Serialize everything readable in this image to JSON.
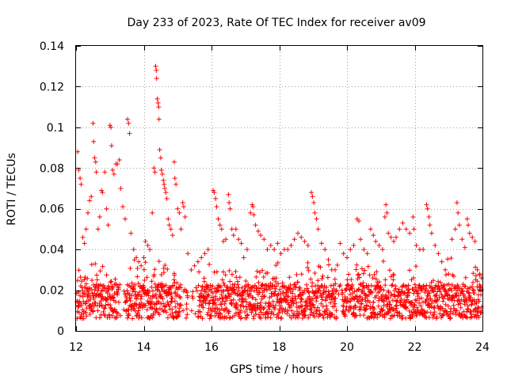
{
  "chart_data": {
    "type": "scatter",
    "title": "Day 233 of 2023, Rate Of TEC Index for receiver av09",
    "xlabel": "GPS time / hours",
    "ylabel": "ROTI / TECUs",
    "xlim": [
      12,
      24
    ],
    "ylim": [
      0,
      0.14
    ],
    "x_ticks": [
      12,
      14,
      16,
      18,
      20,
      22,
      24
    ],
    "x_tick_labels": [
      "12",
      "14",
      "16",
      "18",
      "20",
      "22",
      "24"
    ],
    "y_ticks": [
      0,
      0.02,
      0.04,
      0.06,
      0.08,
      0.1,
      0.12,
      0.14
    ],
    "y_tick_labels": [
      "0",
      "0.02",
      "0.04",
      "0.06",
      "0.08",
      "0.1",
      "0.12",
      "0.14"
    ],
    "grid": true,
    "marker": "+",
    "color": "#ff0000",
    "series": [
      {
        "name": "ROTI",
        "points": [
          [
            12.05,
            0.088
          ],
          [
            12.08,
            0.079
          ],
          [
            12.12,
            0.075
          ],
          [
            12.15,
            0.072
          ],
          [
            12.2,
            0.046
          ],
          [
            12.25,
            0.043
          ],
          [
            12.3,
            0.05
          ],
          [
            12.35,
            0.058
          ],
          [
            12.4,
            0.064
          ],
          [
            12.45,
            0.066
          ],
          [
            12.5,
            0.102
          ],
          [
            12.52,
            0.093
          ],
          [
            12.55,
            0.085
          ],
          [
            12.58,
            0.083
          ],
          [
            12.6,
            0.078
          ],
          [
            12.65,
            0.05
          ],
          [
            12.7,
            0.056
          ],
          [
            12.75,
            0.069
          ],
          [
            12.78,
            0.068
          ],
          [
            12.85,
            0.078
          ],
          [
            12.9,
            0.06
          ],
          [
            12.95,
            0.052
          ],
          [
            13.0,
            0.101
          ],
          [
            13.03,
            0.1
          ],
          [
            13.05,
            0.091
          ],
          [
            13.08,
            0.079
          ],
          [
            13.12,
            0.077
          ],
          [
            13.18,
            0.082
          ],
          [
            13.22,
            0.082
          ],
          [
            13.28,
            0.084
          ],
          [
            13.32,
            0.07
          ],
          [
            13.38,
            0.061
          ],
          [
            13.45,
            0.055
          ],
          [
            13.52,
            0.104
          ],
          [
            13.55,
            0.102
          ],
          [
            13.58,
            0.097
          ],
          [
            13.62,
            0.048
          ],
          [
            13.7,
            0.04
          ],
          [
            13.78,
            0.036
          ],
          [
            13.85,
            0.034
          ],
          [
            13.92,
            0.032
          ],
          [
            14.0,
            0.036
          ],
          [
            14.05,
            0.044
          ],
          [
            14.12,
            0.042
          ],
          [
            14.18,
            0.04
          ],
          [
            14.25,
            0.058
          ],
          [
            14.3,
            0.08
          ],
          [
            14.33,
            0.078
          ],
          [
            14.35,
            0.13
          ],
          [
            14.37,
            0.128
          ],
          [
            14.38,
            0.124
          ],
          [
            14.4,
            0.114
          ],
          [
            14.42,
            0.112
          ],
          [
            14.44,
            0.11
          ],
          [
            14.45,
            0.104
          ],
          [
            14.47,
            0.089
          ],
          [
            14.5,
            0.085
          ],
          [
            14.52,
            0.079
          ],
          [
            14.55,
            0.077
          ],
          [
            14.58,
            0.074
          ],
          [
            14.6,
            0.072
          ],
          [
            14.62,
            0.07
          ],
          [
            14.65,
            0.068
          ],
          [
            14.68,
            0.065
          ],
          [
            14.72,
            0.055
          ],
          [
            14.75,
            0.052
          ],
          [
            14.8,
            0.05
          ],
          [
            14.85,
            0.047
          ],
          [
            14.9,
            0.083
          ],
          [
            14.92,
            0.075
          ],
          [
            14.95,
            0.072
          ],
          [
            15.0,
            0.06
          ],
          [
            15.05,
            0.058
          ],
          [
            15.1,
            0.05
          ],
          [
            15.15,
            0.063
          ],
          [
            15.18,
            0.061
          ],
          [
            15.22,
            0.056
          ],
          [
            15.3,
            0.038
          ],
          [
            15.4,
            0.03
          ],
          [
            15.5,
            0.032
          ],
          [
            15.6,
            0.034
          ],
          [
            15.7,
            0.036
          ],
          [
            15.8,
            0.038
          ],
          [
            15.9,
            0.04
          ],
          [
            16.05,
            0.069
          ],
          [
            16.08,
            0.068
          ],
          [
            16.12,
            0.065
          ],
          [
            16.15,
            0.061
          ],
          [
            16.2,
            0.055
          ],
          [
            16.25,
            0.052
          ],
          [
            16.3,
            0.05
          ],
          [
            16.35,
            0.044
          ],
          [
            16.42,
            0.045
          ],
          [
            16.5,
            0.067
          ],
          [
            16.52,
            0.063
          ],
          [
            16.55,
            0.06
          ],
          [
            16.6,
            0.05
          ],
          [
            16.65,
            0.047
          ],
          [
            16.72,
            0.05
          ],
          [
            16.8,
            0.045
          ],
          [
            16.88,
            0.043
          ],
          [
            16.95,
            0.036
          ],
          [
            17.05,
            0.04
          ],
          [
            17.15,
            0.058
          ],
          [
            17.2,
            0.062
          ],
          [
            17.22,
            0.061
          ],
          [
            17.25,
            0.057
          ],
          [
            17.3,
            0.052
          ],
          [
            17.38,
            0.049
          ],
          [
            17.45,
            0.047
          ],
          [
            17.55,
            0.045
          ],
          [
            17.65,
            0.04
          ],
          [
            17.75,
            0.042
          ],
          [
            17.85,
            0.04
          ],
          [
            17.95,
            0.043
          ],
          [
            18.05,
            0.038
          ],
          [
            18.15,
            0.04
          ],
          [
            18.25,
            0.04
          ],
          [
            18.35,
            0.042
          ],
          [
            18.45,
            0.045
          ],
          [
            18.55,
            0.048
          ],
          [
            18.65,
            0.046
          ],
          [
            18.75,
            0.044
          ],
          [
            18.85,
            0.042
          ],
          [
            18.95,
            0.068
          ],
          [
            18.98,
            0.066
          ],
          [
            19.02,
            0.063
          ],
          [
            19.05,
            0.058
          ],
          [
            19.1,
            0.055
          ],
          [
            19.15,
            0.05
          ],
          [
            19.25,
            0.043
          ],
          [
            19.35,
            0.04
          ],
          [
            19.45,
            0.035
          ],
          [
            19.55,
            0.03
          ],
          [
            19.65,
            0.03
          ],
          [
            19.8,
            0.043
          ],
          [
            19.9,
            0.038
          ],
          [
            20.0,
            0.036
          ],
          [
            20.1,
            0.04
          ],
          [
            20.2,
            0.042
          ],
          [
            20.3,
            0.055
          ],
          [
            20.35,
            0.054
          ],
          [
            20.4,
            0.045
          ],
          [
            20.5,
            0.04
          ],
          [
            20.6,
            0.038
          ],
          [
            20.7,
            0.05
          ],
          [
            20.78,
            0.047
          ],
          [
            20.85,
            0.044
          ],
          [
            20.95,
            0.042
          ],
          [
            21.05,
            0.04
          ],
          [
            21.12,
            0.056
          ],
          [
            21.15,
            0.062
          ],
          [
            21.18,
            0.058
          ],
          [
            21.22,
            0.048
          ],
          [
            21.3,
            0.046
          ],
          [
            21.38,
            0.044
          ],
          [
            21.45,
            0.046
          ],
          [
            21.55,
            0.05
          ],
          [
            21.65,
            0.053
          ],
          [
            21.75,
            0.05
          ],
          [
            21.85,
            0.048
          ],
          [
            21.95,
            0.056
          ],
          [
            21.98,
            0.05
          ],
          [
            22.05,
            0.042
          ],
          [
            22.15,
            0.04
          ],
          [
            22.25,
            0.04
          ],
          [
            22.35,
            0.062
          ],
          [
            22.38,
            0.06
          ],
          [
            22.42,
            0.056
          ],
          [
            22.45,
            0.052
          ],
          [
            22.5,
            0.048
          ],
          [
            22.6,
            0.042
          ],
          [
            22.7,
            0.038
          ],
          [
            22.8,
            0.034
          ],
          [
            22.9,
            0.03
          ],
          [
            23.0,
            0.028
          ],
          [
            23.1,
            0.045
          ],
          [
            23.2,
            0.05
          ],
          [
            23.25,
            0.063
          ],
          [
            23.28,
            0.058
          ],
          [
            23.32,
            0.052
          ],
          [
            23.4,
            0.045
          ],
          [
            23.48,
            0.041
          ],
          [
            23.55,
            0.055
          ],
          [
            23.58,
            0.052
          ],
          [
            23.62,
            0.048
          ],
          [
            23.7,
            0.046
          ],
          [
            23.78,
            0.044
          ],
          [
            23.85,
            0.03
          ],
          [
            23.92,
            0.028
          ],
          [
            23.97,
            0.026
          ]
        ]
      }
    ]
  }
}
